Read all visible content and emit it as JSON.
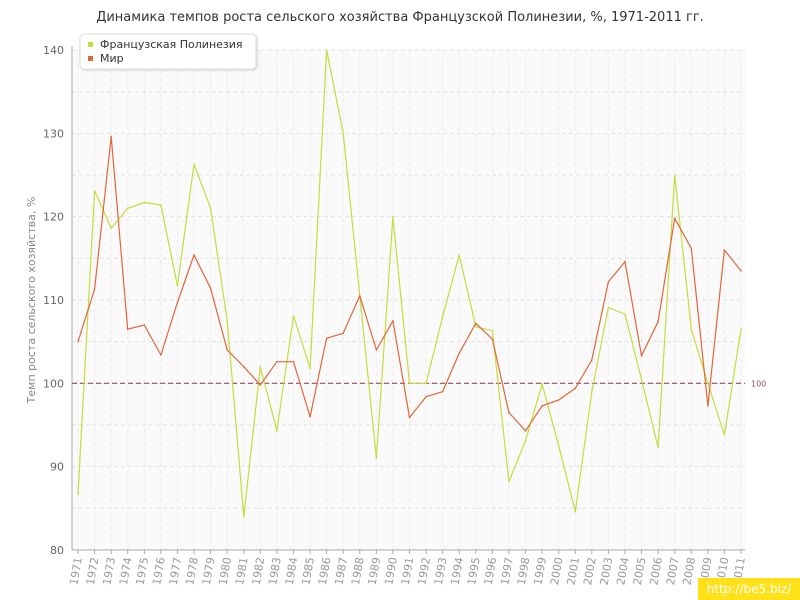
{
  "chart_data": {
    "type": "line",
    "title": "Динамика темпов роста сельского хозяйства Французской Полинезии, %, 1971-2011 гг.",
    "ylabel": "Темп роста сельского хозяйства, %",
    "xlabel": "",
    "ylim": [
      80,
      140
    ],
    "yticks": [
      80,
      90,
      100,
      110,
      120,
      130,
      140
    ],
    "grid": true,
    "legend_position": "top-left",
    "reference_line": {
      "value": 100,
      "label": "100",
      "color": "#9b4a5e"
    },
    "x": [
      "1971",
      "1972",
      "1973",
      "1974",
      "1975",
      "1976",
      "1977",
      "1978",
      "1979",
      "1980",
      "1981",
      "1982",
      "1983",
      "1984",
      "1985",
      "1986",
      "1987",
      "1988",
      "1989",
      "1990",
      "1991",
      "1992",
      "1993",
      "1994",
      "1995",
      "1996",
      "1997",
      "1998",
      "1999",
      "2000",
      "2001",
      "2002",
      "2003",
      "2004",
      "2005",
      "2006",
      "2007",
      "2008",
      "2009",
      "2010",
      "2011"
    ],
    "series": [
      {
        "name": "Французская Полинезия",
        "color": "#c5dc3d",
        "values": [
          86.7,
          123.1,
          118.6,
          121.0,
          121.7,
          121.4,
          111.7,
          126.3,
          121.0,
          107.5,
          84.0,
          102.0,
          94.3,
          108.1,
          101.8,
          140.0,
          130.0,
          110.5,
          91.0,
          120.0,
          100.0,
          100.0,
          108.0,
          115.4,
          106.8,
          106.3,
          88.2,
          93.1,
          99.9,
          92.5,
          84.6,
          99.0,
          109.1,
          108.3,
          100.5,
          92.3,
          125.0,
          106.5,
          100.0,
          93.8,
          106.5
        ]
      },
      {
        "name": "Мир",
        "color": "#e0673a",
        "values": [
          105.0,
          111.3,
          129.6,
          106.5,
          107.0,
          103.4,
          109.7,
          115.4,
          111.4,
          104.0,
          102.0,
          99.8,
          102.6,
          102.6,
          96.0,
          105.4,
          106.0,
          110.5,
          104.0,
          107.5,
          95.9,
          98.4,
          99.0,
          103.6,
          107.2,
          105.3,
          96.5,
          94.3,
          97.3,
          98.0,
          99.4,
          102.8,
          112.2,
          114.6,
          103.3,
          107.4,
          119.8,
          116.2,
          97.3,
          116.0,
          113.5
        ]
      }
    ]
  },
  "watermark": "http://be5.biz/"
}
